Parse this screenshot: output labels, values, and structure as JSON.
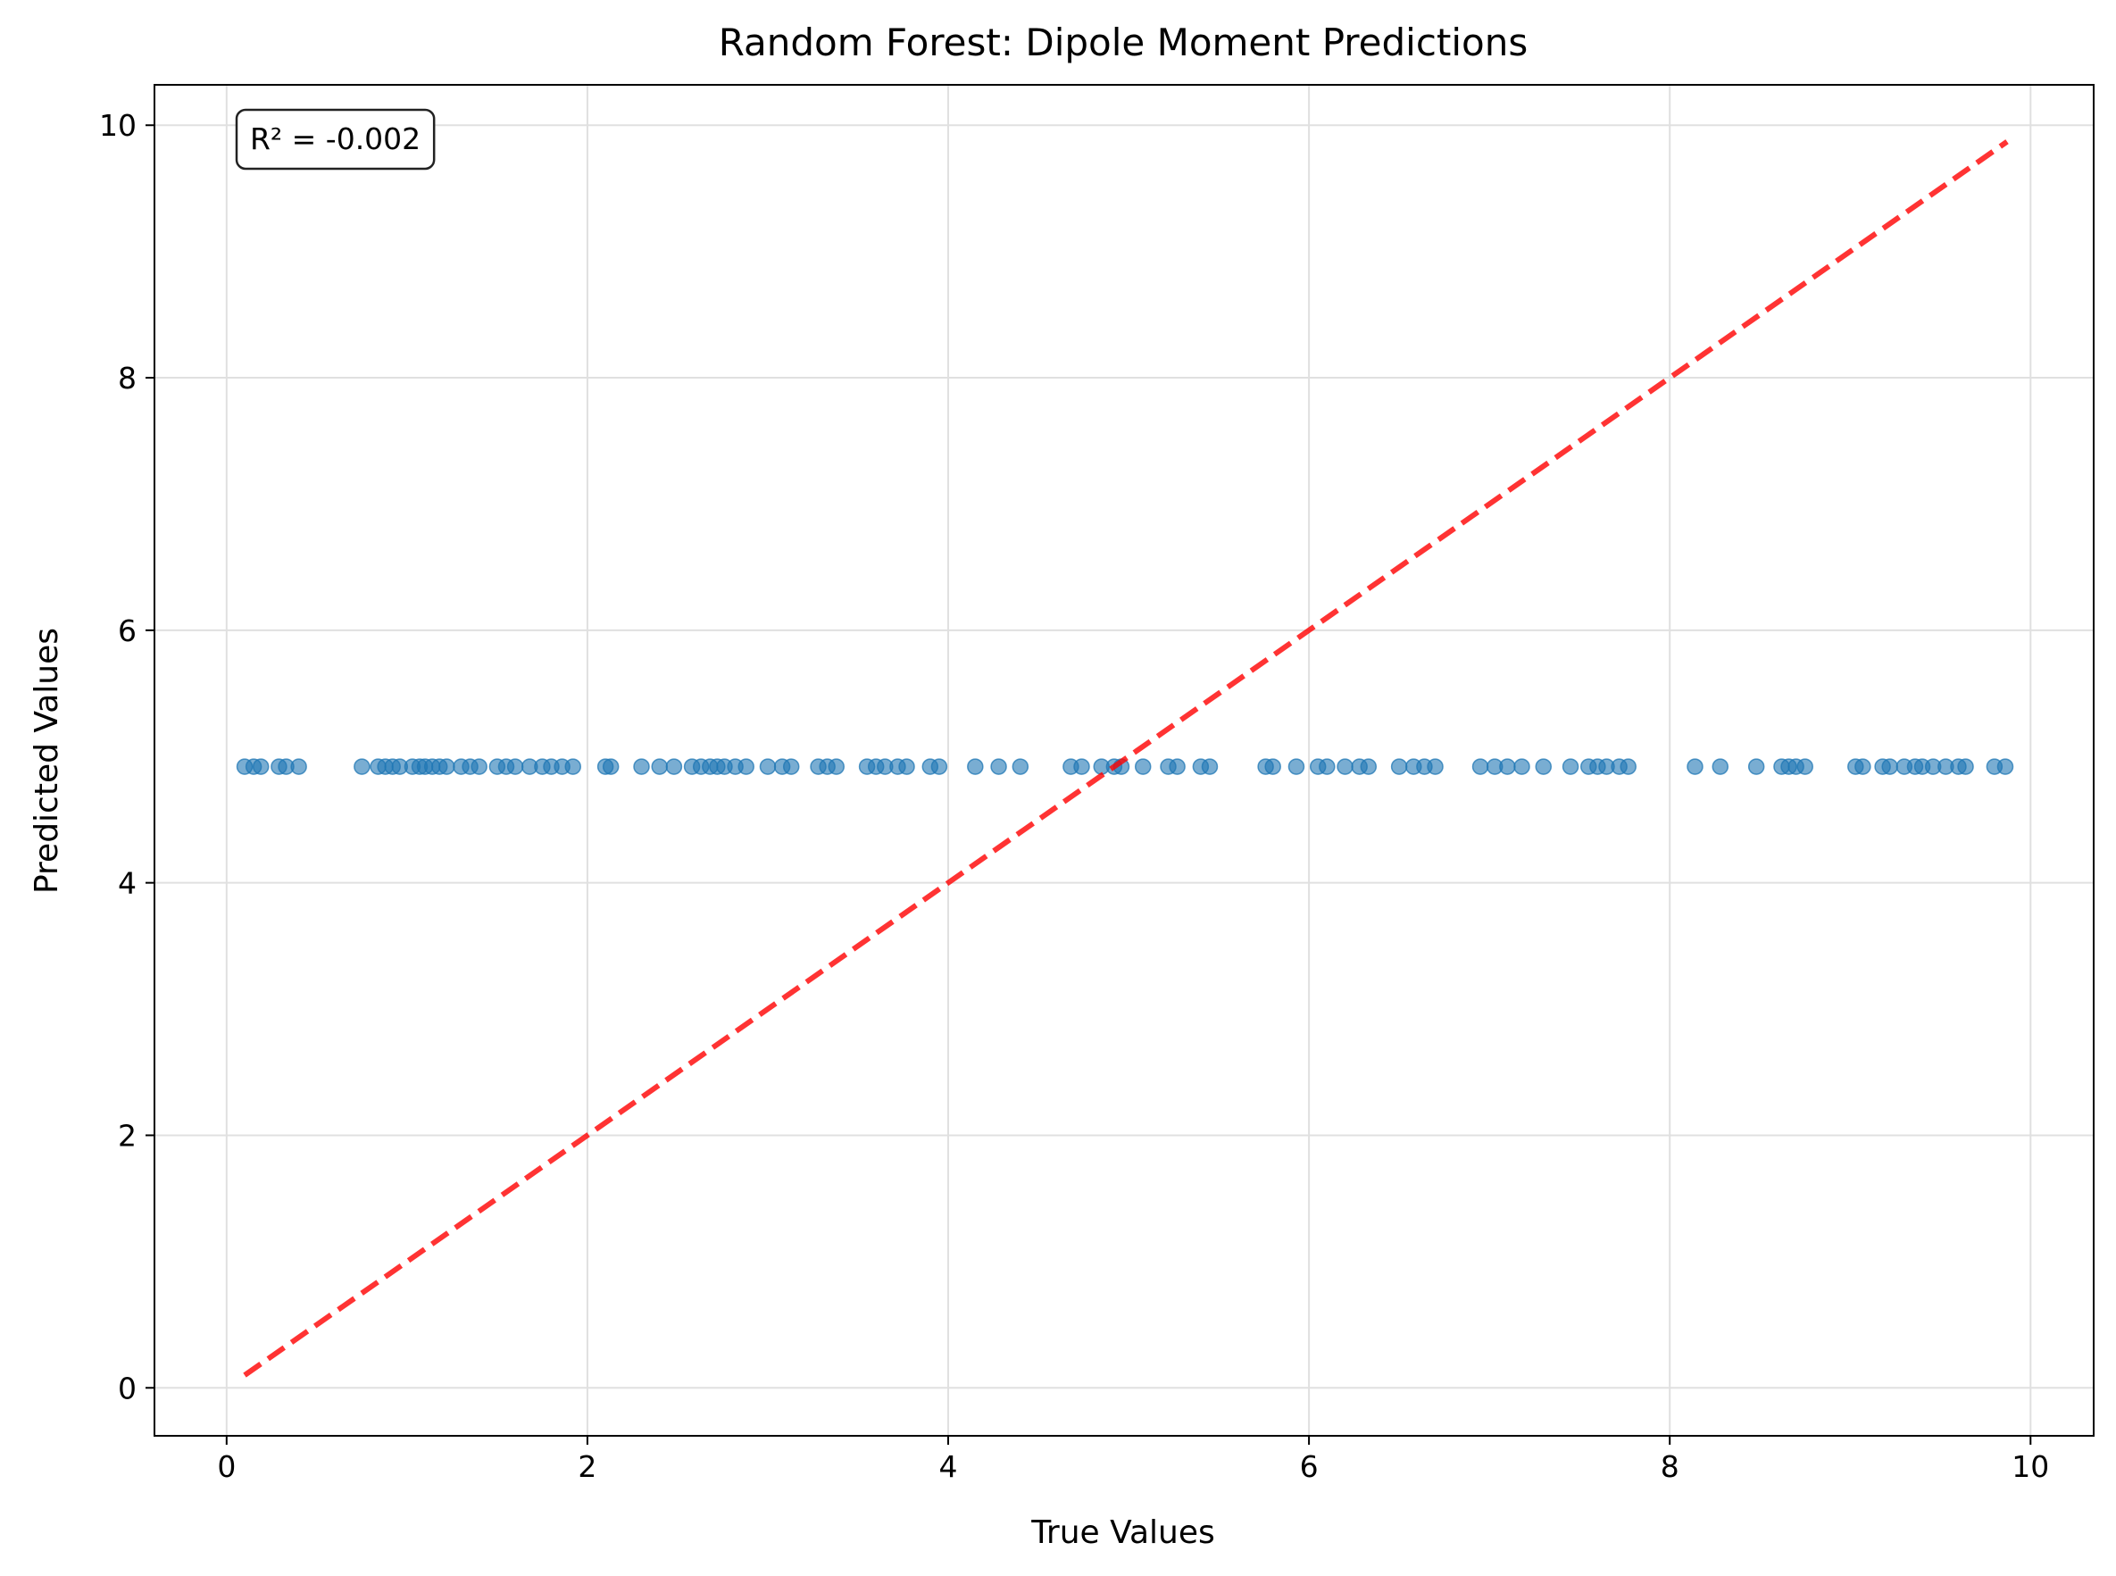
{
  "chart_data": {
    "type": "scatter",
    "title": "Random Forest: Dipole Moment Predictions",
    "xlabel": "True Values",
    "ylabel": "Predicted Values",
    "xlim": [
      -0.4,
      10.35
    ],
    "ylim": [
      -0.38,
      10.32
    ],
    "xticks": [
      0,
      2,
      4,
      6,
      8,
      10
    ],
    "yticks": [
      0,
      2,
      4,
      6,
      8,
      10
    ],
    "grid": true,
    "annotation": "R² = -0.002",
    "annotation_position": "top-left",
    "colors": {
      "points": "#1f77b4",
      "reference_line": "#ff0000",
      "grid": "#e0e0e0"
    },
    "reference_line": {
      "style": "dashed",
      "x": [
        0.1,
        9.87
      ],
      "y": [
        0.1,
        9.87
      ]
    },
    "series": [
      {
        "points": [
          [
            0.1,
            4.92
          ],
          [
            0.15,
            4.92
          ],
          [
            0.19,
            4.92
          ],
          [
            0.29,
            4.92
          ],
          [
            0.33,
            4.92
          ],
          [
            0.4,
            4.92
          ],
          [
            0.75,
            4.92
          ],
          [
            0.84,
            4.92
          ],
          [
            0.88,
            4.92
          ],
          [
            0.92,
            4.92
          ],
          [
            0.96,
            4.92
          ],
          [
            1.03,
            4.92
          ],
          [
            1.07,
            4.92
          ],
          [
            1.1,
            4.92
          ],
          [
            1.14,
            4.92
          ],
          [
            1.18,
            4.92
          ],
          [
            1.22,
            4.92
          ],
          [
            1.3,
            4.92
          ],
          [
            1.35,
            4.92
          ],
          [
            1.4,
            4.92
          ],
          [
            1.5,
            4.92
          ],
          [
            1.55,
            4.92
          ],
          [
            1.6,
            4.92
          ],
          [
            1.68,
            4.92
          ],
          [
            1.75,
            4.92
          ],
          [
            1.8,
            4.92
          ],
          [
            1.86,
            4.92
          ],
          [
            1.92,
            4.92
          ],
          [
            2.1,
            4.92
          ],
          [
            2.13,
            4.92
          ],
          [
            2.3,
            4.92
          ],
          [
            2.4,
            4.92
          ],
          [
            2.48,
            4.92
          ],
          [
            2.58,
            4.92
          ],
          [
            2.63,
            4.92
          ],
          [
            2.68,
            4.92
          ],
          [
            2.72,
            4.92
          ],
          [
            2.76,
            4.92
          ],
          [
            2.82,
            4.92
          ],
          [
            2.88,
            4.92
          ],
          [
            3.0,
            4.92
          ],
          [
            3.08,
            4.92
          ],
          [
            3.13,
            4.92
          ],
          [
            3.28,
            4.92
          ],
          [
            3.33,
            4.92
          ],
          [
            3.38,
            4.92
          ],
          [
            3.55,
            4.92
          ],
          [
            3.6,
            4.92
          ],
          [
            3.65,
            4.92
          ],
          [
            3.72,
            4.92
          ],
          [
            3.77,
            4.92
          ],
          [
            3.9,
            4.92
          ],
          [
            3.95,
            4.92
          ],
          [
            4.15,
            4.92
          ],
          [
            4.28,
            4.92
          ],
          [
            4.4,
            4.92
          ],
          [
            4.68,
            4.92
          ],
          [
            4.74,
            4.92
          ],
          [
            4.85,
            4.92
          ],
          [
            4.92,
            4.92
          ],
          [
            4.96,
            4.92
          ],
          [
            5.08,
            4.92
          ],
          [
            5.22,
            4.92
          ],
          [
            5.27,
            4.92
          ],
          [
            5.4,
            4.92
          ],
          [
            5.45,
            4.92
          ],
          [
            5.76,
            4.92
          ],
          [
            5.8,
            4.92
          ],
          [
            5.93,
            4.92
          ],
          [
            6.05,
            4.92
          ],
          [
            6.1,
            4.92
          ],
          [
            6.2,
            4.92
          ],
          [
            6.28,
            4.92
          ],
          [
            6.33,
            4.92
          ],
          [
            6.5,
            4.92
          ],
          [
            6.58,
            4.92
          ],
          [
            6.64,
            4.92
          ],
          [
            6.7,
            4.92
          ],
          [
            6.95,
            4.92
          ],
          [
            7.03,
            4.92
          ],
          [
            7.1,
            4.92
          ],
          [
            7.18,
            4.92
          ],
          [
            7.3,
            4.92
          ],
          [
            7.45,
            4.92
          ],
          [
            7.55,
            4.92
          ],
          [
            7.6,
            4.92
          ],
          [
            7.65,
            4.92
          ],
          [
            7.72,
            4.92
          ],
          [
            7.77,
            4.92
          ],
          [
            8.14,
            4.92
          ],
          [
            8.28,
            4.92
          ],
          [
            8.48,
            4.92
          ],
          [
            8.62,
            4.92
          ],
          [
            8.66,
            4.92
          ],
          [
            8.7,
            4.92
          ],
          [
            8.75,
            4.92
          ],
          [
            9.03,
            4.92
          ],
          [
            9.07,
            4.92
          ],
          [
            9.18,
            4.92
          ],
          [
            9.22,
            4.92
          ],
          [
            9.3,
            4.92
          ],
          [
            9.36,
            4.92
          ],
          [
            9.4,
            4.92
          ],
          [
            9.46,
            4.92
          ],
          [
            9.53,
            4.92
          ],
          [
            9.6,
            4.92
          ],
          [
            9.64,
            4.92
          ],
          [
            9.8,
            4.92
          ],
          [
            9.86,
            4.92
          ]
        ]
      }
    ]
  }
}
